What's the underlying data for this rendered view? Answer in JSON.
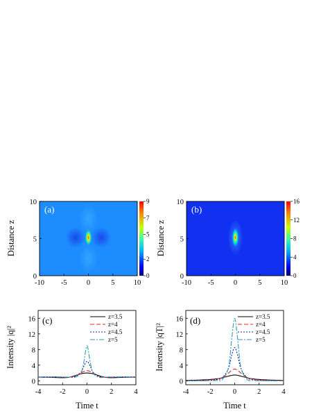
{
  "figure": {
    "panels": [
      {
        "id": "a",
        "label": "(a)",
        "type": "heatmap",
        "ylabel": "Distance z",
        "x_ticks": [
          "-10",
          "-5",
          "0",
          "5",
          "10"
        ],
        "y_ticks": [
          "0",
          "5",
          "10"
        ],
        "colorbar_ticks": [
          "0",
          "2",
          "5",
          "7",
          "9"
        ]
      },
      {
        "id": "b",
        "label": "(b)",
        "type": "heatmap",
        "ylabel": "Distance z",
        "x_ticks": [
          "-10",
          "-5",
          "0",
          "5",
          "10"
        ],
        "y_ticks": [
          "0",
          "5",
          "10"
        ],
        "colorbar_ticks": [
          "0",
          "4",
          "8",
          "12",
          "16"
        ]
      },
      {
        "id": "c",
        "label": "(c)",
        "type": "line",
        "ylabel": "Intensity |q|²",
        "xlabel": "Time t",
        "x_ticks": [
          "-4",
          "-2",
          "0",
          "2",
          "4"
        ],
        "y_ticks": [
          "0",
          "4",
          "8",
          "12",
          "16"
        ],
        "legend": [
          "z=3.5",
          "z=4",
          "z=4.5",
          "z=5"
        ]
      },
      {
        "id": "d",
        "label": "(d)",
        "type": "line",
        "ylabel": "Intensity |qT|²",
        "xlabel": "Time t",
        "x_ticks": [
          "-4",
          "-2",
          "0",
          "2",
          "4"
        ],
        "y_ticks": [
          "0",
          "4",
          "8",
          "12",
          "16"
        ],
        "legend": [
          "z=3.5",
          "z=4",
          "z=4.5",
          "z=5"
        ]
      }
    ]
  },
  "chart_data": [
    {
      "type": "heatmap",
      "label": "(a)",
      "xlabel": "",
      "ylabel": "Distance z",
      "xlim": [
        -10,
        10
      ],
      "ylim": [
        0,
        10
      ],
      "value_range": [
        0,
        9
      ],
      "background_value": 1,
      "peak": {
        "t": 0,
        "z": 5,
        "value": 9
      },
      "colorbar_ticks": [
        0,
        2,
        5,
        7,
        9
      ]
    },
    {
      "type": "heatmap",
      "label": "(b)",
      "xlabel": "",
      "ylabel": "Distance z",
      "xlim": [
        -10,
        10
      ],
      "ylim": [
        0,
        10
      ],
      "value_range": [
        0,
        16
      ],
      "background_value": 0,
      "peak": {
        "t": 0,
        "z": 5,
        "value": 16
      },
      "colorbar_ticks": [
        0,
        4,
        8,
        12,
        16
      ]
    },
    {
      "type": "line",
      "label": "(c)",
      "xlabel": "Time t",
      "ylabel": "Intensity |q|²",
      "xlim": [
        -4,
        4
      ],
      "ylim": [
        -1,
        18
      ],
      "x": [
        -4,
        -3,
        -2,
        -1.5,
        -1,
        -0.5,
        -0.25,
        0,
        0.25,
        0.5,
        1,
        1.5,
        2,
        3,
        4
      ],
      "series": [
        {
          "name": "z=3.5",
          "color": "#000000",
          "dash": "",
          "values": [
            0.95,
            0.9,
            0.8,
            0.9,
            1.3,
            1.8,
            1.95,
            2.0,
            1.95,
            1.8,
            1.3,
            0.9,
            0.8,
            0.9,
            0.95
          ]
        },
        {
          "name": "z=4",
          "color": "#e8231f",
          "dash": "6,3",
          "values": [
            0.95,
            0.95,
            0.9,
            0.95,
            1.2,
            2.0,
            2.4,
            2.6,
            2.4,
            2.0,
            1.2,
            0.95,
            0.9,
            0.95,
            0.95
          ]
        },
        {
          "name": "z=4.5",
          "color": "#1b1ba6",
          "dash": "2,2",
          "values": [
            1.0,
            1.0,
            0.95,
            0.95,
            1.1,
            2.2,
            3.8,
            5.0,
            3.8,
            2.2,
            1.1,
            0.95,
            0.95,
            1.0,
            1.0
          ]
        },
        {
          "name": "z=5",
          "color": "#2a9fb0",
          "dash": "7,2,2,2",
          "values": [
            1.0,
            1.0,
            1.0,
            0.95,
            0.9,
            2.0,
            5.0,
            9.0,
            5.0,
            2.0,
            0.9,
            0.95,
            1.0,
            1.0,
            1.0
          ]
        }
      ]
    },
    {
      "type": "line",
      "label": "(d)",
      "xlabel": "Time t",
      "ylabel": "Intensity |qT|²",
      "xlim": [
        -4,
        4
      ],
      "ylim": [
        -1,
        18
      ],
      "x": [
        -4,
        -3,
        -2,
        -1.5,
        -1,
        -0.5,
        -0.25,
        0,
        0.25,
        0.5,
        1,
        1.5,
        2,
        3,
        4
      ],
      "series": [
        {
          "name": "z=3.5",
          "color": "#000000",
          "dash": "",
          "values": [
            0.1,
            0.2,
            0.35,
            0.5,
            0.8,
            1.2,
            1.4,
            1.5,
            1.4,
            1.2,
            0.8,
            0.5,
            0.35,
            0.2,
            0.1
          ]
        },
        {
          "name": "z=4",
          "color": "#e8231f",
          "dash": "6,3",
          "values": [
            0.05,
            0.1,
            0.25,
            0.45,
            0.9,
            2.0,
            2.7,
            3.0,
            2.7,
            2.0,
            0.9,
            0.45,
            0.25,
            0.1,
            0.05
          ]
        },
        {
          "name": "z=4.5",
          "color": "#1b1ba6",
          "dash": "2,2",
          "values": [
            0.02,
            0.05,
            0.12,
            0.3,
            0.8,
            3.2,
            6.5,
            8.5,
            6.5,
            3.2,
            0.8,
            0.3,
            0.12,
            0.05,
            0.02
          ]
        },
        {
          "name": "z=5",
          "color": "#2a9fb0",
          "dash": "7,2,2,2",
          "values": [
            0.0,
            0.02,
            0.05,
            0.1,
            0.4,
            3.5,
            10.5,
            16.0,
            10.5,
            3.5,
            0.4,
            0.1,
            0.05,
            0.02,
            0.0
          ]
        }
      ]
    }
  ]
}
